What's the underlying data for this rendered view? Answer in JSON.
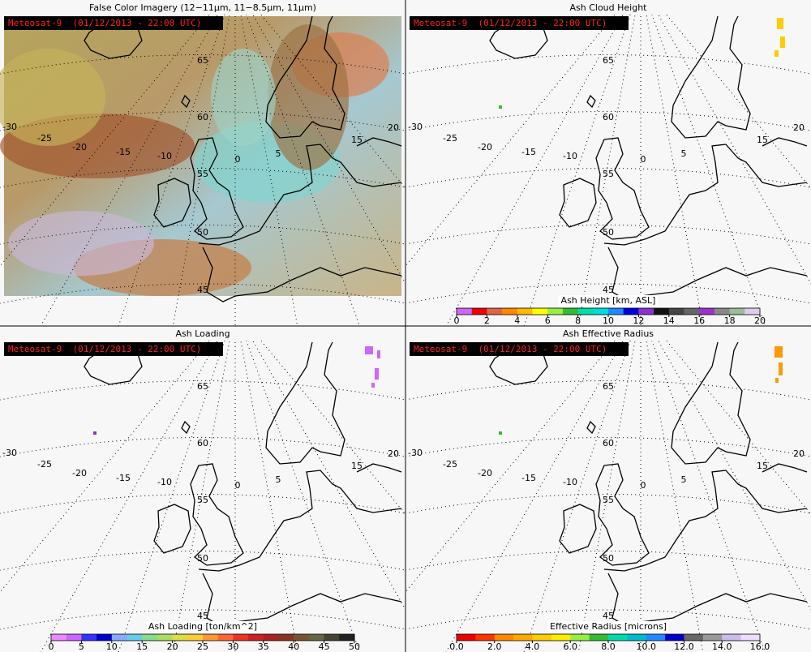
{
  "panels": [
    {
      "title": "False Color Imagery (12−11μm, 11−8.5μm, 11μm)",
      "satellite_label": "Meteosat-9  (01/12/2013 - 22:00 UTC)"
    },
    {
      "title": "Ash Cloud Height",
      "satellite_label": "Meteosat-9  (01/12/2013 - 22:00 UTC)",
      "colorbar": {
        "label": "Ash Height [km, ASL]",
        "ticks": [
          "0",
          "2",
          "4",
          "6",
          "8",
          "10",
          "12",
          "14",
          "16",
          "18",
          "20"
        ],
        "colors": [
          "#cc66ff",
          "#ee0000",
          "#dd6644",
          "#ff8800",
          "#ffbb00",
          "#ffff00",
          "#99ee44",
          "#33bb33",
          "#00ddaa",
          "#00dddd",
          "#2288ff",
          "#0000dd",
          "#8833cc",
          "#111111",
          "#444444",
          "#666666",
          "#9933cc",
          "#888888",
          "#99bb99",
          "#ddccee"
        ]
      }
    },
    {
      "title": "Ash Loading",
      "satellite_label": "Meteosat-9  (01/12/2013 - 22:00 UTC)",
      "colorbar": {
        "label": "Ash Loading [ton/km^2]",
        "ticks": [
          "0",
          "5",
          "10",
          "15",
          "20",
          "25",
          "30",
          "35",
          "40",
          "45",
          "50"
        ],
        "colors": [
          "#ee88ff",
          "#cc66ff",
          "#3333ff",
          "#0000cc",
          "#88aaff",
          "#66ccee",
          "#88dd88",
          "#aadd66",
          "#dddd44",
          "#ffcc33",
          "#ff9933",
          "#ff6633",
          "#ee3322",
          "#cc2222",
          "#aa2222",
          "#883322",
          "#775533",
          "#666644",
          "#444433",
          "#222222"
        ]
      }
    },
    {
      "title": "Ash Effective Radius",
      "satellite_label": "Meteosat-9  (01/12/2013 - 22:00 UTC)",
      "colorbar": {
        "label": "Effective Radius [microns]",
        "ticks": [
          "0.0",
          "2.0",
          "4.0",
          "6.0",
          "8.0",
          "10.0",
          "12.0",
          "14.0",
          "16.0"
        ],
        "colors": [
          "#ee0000",
          "#ff3300",
          "#ff8800",
          "#ffaa00",
          "#ffcc00",
          "#ffee00",
          "#99ee44",
          "#33bb33",
          "#00ddaa",
          "#00bbcc",
          "#2288ff",
          "#0000cc",
          "#666666",
          "#999999",
          "#ccbbee",
          "#eeddff"
        ]
      }
    }
  ],
  "map_grid": {
    "lat_labels": [
      "65",
      "60",
      "55",
      "50",
      "45"
    ],
    "lon_labels": [
      "-30",
      "-25",
      "-20",
      "-15",
      "-10",
      "0",
      "5",
      "15",
      "20"
    ]
  }
}
